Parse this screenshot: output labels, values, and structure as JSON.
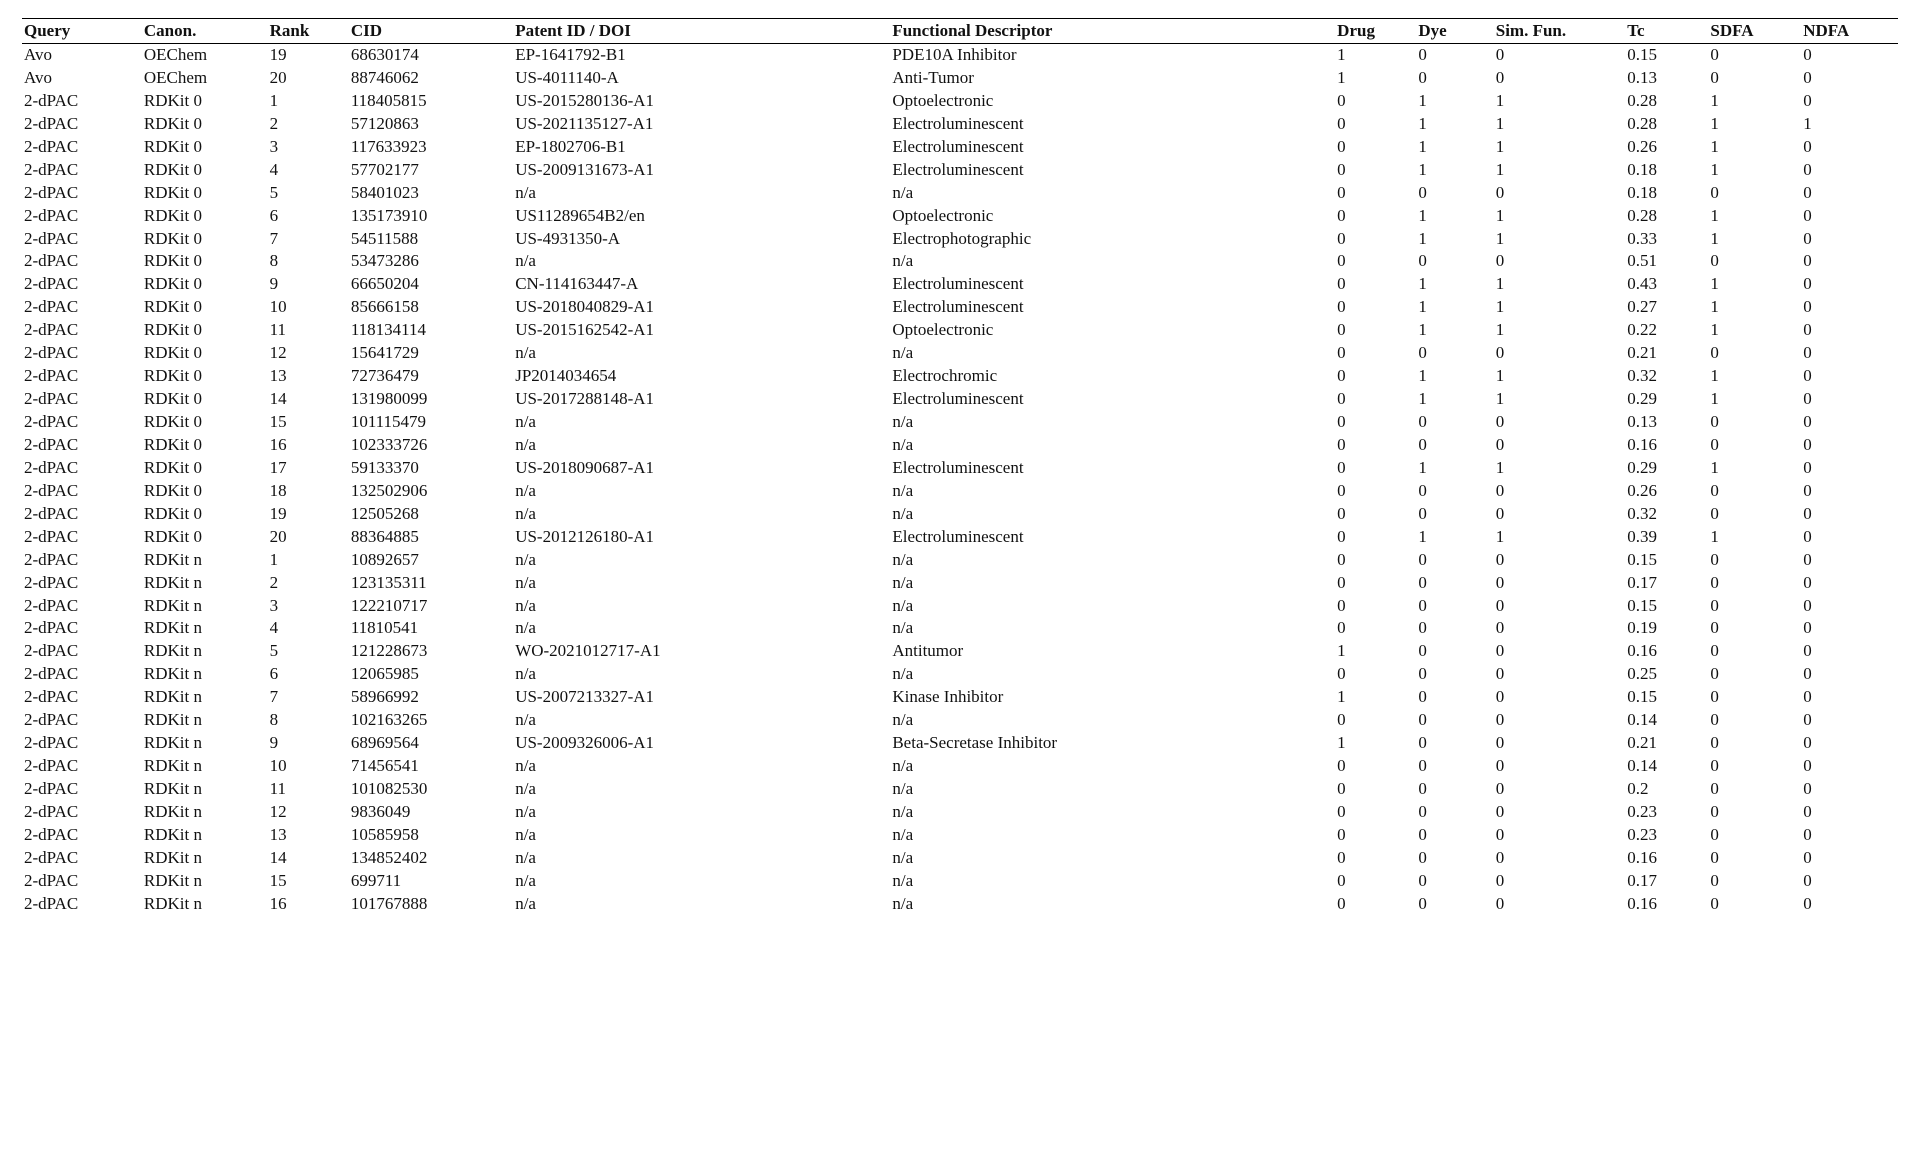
{
  "table": {
    "columns": [
      "Query",
      "Canon.",
      "Rank",
      "CID",
      "Patent ID / DOI",
      "Functional Descriptor",
      "Drug",
      "Dye",
      "Sim. Fun.",
      "Tc",
      "SDFA",
      "NDFA"
    ],
    "rows": [
      [
        "Avo",
        "OEChem",
        "19",
        "68630174",
        "EP-1641792-B1",
        "PDE10A Inhibitor",
        "1",
        "0",
        "0",
        "0.15",
        "0",
        "0"
      ],
      [
        "Avo",
        "OEChem",
        "20",
        "88746062",
        "US-4011140-A",
        "Anti-Tumor",
        "1",
        "0",
        "0",
        "0.13",
        "0",
        "0"
      ],
      [
        "2-dPAC",
        "RDKit 0",
        "1",
        "118405815",
        "US-2015280136-A1",
        "Optoelectronic",
        "0",
        "1",
        "1",
        "0.28",
        "1",
        "0"
      ],
      [
        "2-dPAC",
        "RDKit 0",
        "2",
        "57120863",
        "US-2021135127-A1",
        "Electroluminescent",
        "0",
        "1",
        "1",
        "0.28",
        "1",
        "1"
      ],
      [
        "2-dPAC",
        "RDKit 0",
        "3",
        "117633923",
        "EP-1802706-B1",
        "Electroluminescent",
        "0",
        "1",
        "1",
        "0.26",
        "1",
        "0"
      ],
      [
        "2-dPAC",
        "RDKit 0",
        "4",
        "57702177",
        "US-2009131673-A1",
        "Electroluminescent",
        "0",
        "1",
        "1",
        "0.18",
        "1",
        "0"
      ],
      [
        "2-dPAC",
        "RDKit 0",
        "5",
        "58401023",
        "n/a",
        "n/a",
        "0",
        "0",
        "0",
        "0.18",
        "0",
        "0"
      ],
      [
        "2-dPAC",
        "RDKit 0",
        "6",
        "135173910",
        "US11289654B2/en",
        "Optoelectronic",
        "0",
        "1",
        "1",
        "0.28",
        "1",
        "0"
      ],
      [
        "2-dPAC",
        "RDKit 0",
        "7",
        "54511588",
        "US-4931350-A",
        "Electrophotographic",
        "0",
        "1",
        "1",
        "0.33",
        "1",
        "0"
      ],
      [
        "2-dPAC",
        "RDKit 0",
        "8",
        "53473286",
        "n/a",
        "n/a",
        "0",
        "0",
        "0",
        "0.51",
        "0",
        "0"
      ],
      [
        "2-dPAC",
        "RDKit 0",
        "9",
        "66650204",
        "CN-114163447-A",
        "Electroluminescent",
        "0",
        "1",
        "1",
        "0.43",
        "1",
        "0"
      ],
      [
        "2-dPAC",
        "RDKit 0",
        "10",
        "85666158",
        "US-2018040829-A1",
        "Electroluminescent",
        "0",
        "1",
        "1",
        "0.27",
        "1",
        "0"
      ],
      [
        "2-dPAC",
        "RDKit 0",
        "11",
        "118134114",
        "US-2015162542-A1",
        "Optoelectronic",
        "0",
        "1",
        "1",
        "0.22",
        "1",
        "0"
      ],
      [
        "2-dPAC",
        "RDKit 0",
        "12",
        "15641729",
        "n/a",
        "n/a",
        "0",
        "0",
        "0",
        "0.21",
        "0",
        "0"
      ],
      [
        "2-dPAC",
        "RDKit 0",
        "13",
        "72736479",
        "JP2014034654",
        "Electrochromic",
        "0",
        "1",
        "1",
        "0.32",
        "1",
        "0"
      ],
      [
        "2-dPAC",
        "RDKit 0",
        "14",
        "131980099",
        "US-2017288148-A1",
        "Electroluminescent",
        "0",
        "1",
        "1",
        "0.29",
        "1",
        "0"
      ],
      [
        "2-dPAC",
        "RDKit 0",
        "15",
        "101115479",
        "n/a",
        "n/a",
        "0",
        "0",
        "0",
        "0.13",
        "0",
        "0"
      ],
      [
        "2-dPAC",
        "RDKit 0",
        "16",
        "102333726",
        "n/a",
        "n/a",
        "0",
        "0",
        "0",
        "0.16",
        "0",
        "0"
      ],
      [
        "2-dPAC",
        "RDKit 0",
        "17",
        "59133370",
        "US-2018090687-A1",
        "Electroluminescent",
        "0",
        "1",
        "1",
        "0.29",
        "1",
        "0"
      ],
      [
        "2-dPAC",
        "RDKit 0",
        "18",
        "132502906",
        "n/a",
        "n/a",
        "0",
        "0",
        "0",
        "0.26",
        "0",
        "0"
      ],
      [
        "2-dPAC",
        "RDKit 0",
        "19",
        "12505268",
        "n/a",
        "n/a",
        "0",
        "0",
        "0",
        "0.32",
        "0",
        "0"
      ],
      [
        "2-dPAC",
        "RDKit 0",
        "20",
        "88364885",
        "US-2012126180-A1",
        "Electroluminescent",
        "0",
        "1",
        "1",
        "0.39",
        "1",
        "0"
      ],
      [
        "2-dPAC",
        "RDKit n",
        "1",
        "10892657",
        "n/a",
        "n/a",
        "0",
        "0",
        "0",
        "0.15",
        "0",
        "0"
      ],
      [
        "2-dPAC",
        "RDKit n",
        "2",
        "123135311",
        "n/a",
        "n/a",
        "0",
        "0",
        "0",
        "0.17",
        "0",
        "0"
      ],
      [
        "2-dPAC",
        "RDKit n",
        "3",
        "122210717",
        "n/a",
        "n/a",
        "0",
        "0",
        "0",
        "0.15",
        "0",
        "0"
      ],
      [
        "2-dPAC",
        "RDKit n",
        "4",
        "11810541",
        "n/a",
        "n/a",
        "0",
        "0",
        "0",
        "0.19",
        "0",
        "0"
      ],
      [
        "2-dPAC",
        "RDKit n",
        "5",
        "121228673",
        "WO-2021012717-A1",
        "Antitumor",
        "1",
        "0",
        "0",
        "0.16",
        "0",
        "0"
      ],
      [
        "2-dPAC",
        "RDKit n",
        "6",
        "12065985",
        "n/a",
        "n/a",
        "0",
        "0",
        "0",
        "0.25",
        "0",
        "0"
      ],
      [
        "2-dPAC",
        "RDKit n",
        "7",
        "58966992",
        "US-2007213327-A1",
        "Kinase Inhibitor",
        "1",
        "0",
        "0",
        "0.15",
        "0",
        "0"
      ],
      [
        "2-dPAC",
        "RDKit n",
        "8",
        "102163265",
        "n/a",
        "n/a",
        "0",
        "0",
        "0",
        "0.14",
        "0",
        "0"
      ],
      [
        "2-dPAC",
        "RDKit n",
        "9",
        "68969564",
        "US-2009326006-A1",
        "Beta-Secretase Inhibitor",
        "1",
        "0",
        "0",
        "0.21",
        "0",
        "0"
      ],
      [
        "2-dPAC",
        "RDKit n",
        "10",
        "71456541",
        "n/a",
        "n/a",
        "0",
        "0",
        "0",
        "0.14",
        "0",
        "0"
      ],
      [
        "2-dPAC",
        "RDKit n",
        "11",
        "101082530",
        "n/a",
        "n/a",
        "0",
        "0",
        "0",
        "0.2",
        "0",
        "0"
      ],
      [
        "2-dPAC",
        "RDKit n",
        "12",
        "9836049",
        "n/a",
        "n/a",
        "0",
        "0",
        "0",
        "0.23",
        "0",
        "0"
      ],
      [
        "2-dPAC",
        "RDKit n",
        "13",
        "10585958",
        "n/a",
        "n/a",
        "0",
        "0",
        "0",
        "0.23",
        "0",
        "0"
      ],
      [
        "2-dPAC",
        "RDKit n",
        "14",
        "134852402",
        "n/a",
        "n/a",
        "0",
        "0",
        "0",
        "0.16",
        "0",
        "0"
      ],
      [
        "2-dPAC",
        "RDKit n",
        "15",
        "699711",
        "n/a",
        "n/a",
        "0",
        "0",
        "0",
        "0.17",
        "0",
        "0"
      ],
      [
        "2-dPAC",
        "RDKit n",
        "16",
        "101767888",
        "n/a",
        "n/a",
        "0",
        "0",
        "0",
        "0.16",
        "0",
        "0"
      ]
    ]
  }
}
